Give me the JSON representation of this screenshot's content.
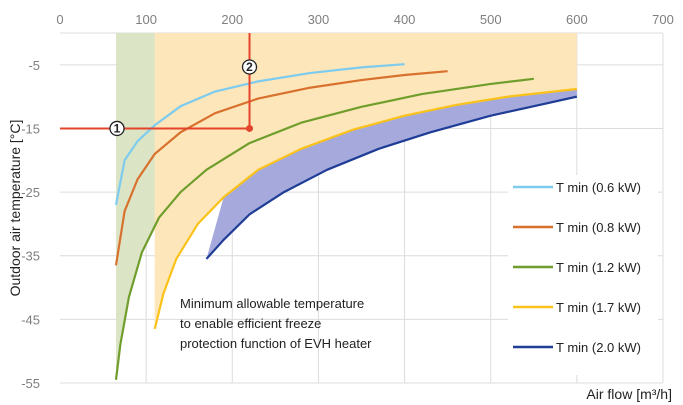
{
  "chart_data": {
    "type": "area",
    "title": "",
    "xlabel": "Air flow [m³/h]",
    "ylabel": "Outdoor air temperature [°C]",
    "xlim": [
      0,
      700
    ],
    "ylim": [
      -55,
      0
    ],
    "x_ticks": [
      0,
      100,
      200,
      300,
      400,
      500,
      600,
      700
    ],
    "y_ticks": [
      -5,
      -15,
      -25,
      -35,
      -45,
      -55
    ],
    "grid": true,
    "legend_position": "right",
    "series": [
      {
        "name": "T min (0.6 kW)",
        "color": "#7dcbee",
        "fill": "#dcecfa",
        "x_max_region": 400,
        "points": [
          [
            65,
            -27
          ],
          [
            75,
            -20
          ],
          [
            90,
            -17
          ],
          [
            110,
            -14.5
          ],
          [
            140,
            -11.5
          ],
          [
            180,
            -9.2
          ],
          [
            230,
            -7.6
          ],
          [
            290,
            -6.3
          ],
          [
            350,
            -5.4
          ],
          [
            400,
            -4.9
          ]
        ]
      },
      {
        "name": "T min (0.8 kW)",
        "color": "#d9712e",
        "fill": "#fbd9c5",
        "x_max_region": 450,
        "points": [
          [
            65,
            -36.5
          ],
          [
            75,
            -28
          ],
          [
            90,
            -23
          ],
          [
            110,
            -19
          ],
          [
            140,
            -15.6
          ],
          [
            180,
            -12.6
          ],
          [
            230,
            -10.3
          ],
          [
            290,
            -8.6
          ],
          [
            350,
            -7.4
          ],
          [
            400,
            -6.6
          ],
          [
            450,
            -6
          ]
        ]
      },
      {
        "name": "T min (1.2 kW)",
        "color": "#6f9e2c",
        "fill": "#dbe5c6",
        "x_max_region": 550,
        "points": [
          [
            65,
            -54.5
          ],
          [
            70,
            -49
          ],
          [
            80,
            -41.5
          ],
          [
            95,
            -34.5
          ],
          [
            115,
            -29
          ],
          [
            140,
            -25
          ],
          [
            170,
            -21.5
          ],
          [
            220,
            -17.3
          ],
          [
            280,
            -14.1
          ],
          [
            350,
            -11.6
          ],
          [
            420,
            -9.6
          ],
          [
            500,
            -8
          ],
          [
            550,
            -7.2
          ]
        ]
      },
      {
        "name": "T min (1.7 kW)",
        "color": "#fbc21a",
        "fill": "#fde6b9",
        "x_max_region": 600,
        "points": [
          [
            110,
            -46.5
          ],
          [
            120,
            -41
          ],
          [
            135,
            -35.5
          ],
          [
            160,
            -30
          ],
          [
            190,
            -25.8
          ],
          [
            230,
            -21.5
          ],
          [
            280,
            -18.2
          ],
          [
            340,
            -15.2
          ],
          [
            400,
            -13
          ],
          [
            460,
            -11.3
          ],
          [
            520,
            -10
          ],
          [
            600,
            -8.8
          ]
        ]
      },
      {
        "name": "T min (2.0 kW)",
        "color": "#1f3d96",
        "fill": "#a6a9dc",
        "x_max_region": 600,
        "points": [
          [
            170,
            -35.5
          ],
          [
            190,
            -32.5
          ],
          [
            220,
            -28.5
          ],
          [
            260,
            -25
          ],
          [
            310,
            -21.5
          ],
          [
            370,
            -18.2
          ],
          [
            430,
            -15.6
          ],
          [
            500,
            -13
          ],
          [
            560,
            -11.2
          ],
          [
            600,
            -10
          ]
        ]
      }
    ],
    "example": {
      "x": 220,
      "y": -15,
      "markers": [
        "1",
        "2"
      ]
    },
    "annotation": "Minimum allowable temperature\nto enable efficient freeze\nprotection function of EVH heater"
  },
  "colors": {
    "grid": "#dcdcdc",
    "axis_text": "#7f7f7f",
    "example_line": "#e3442b"
  }
}
